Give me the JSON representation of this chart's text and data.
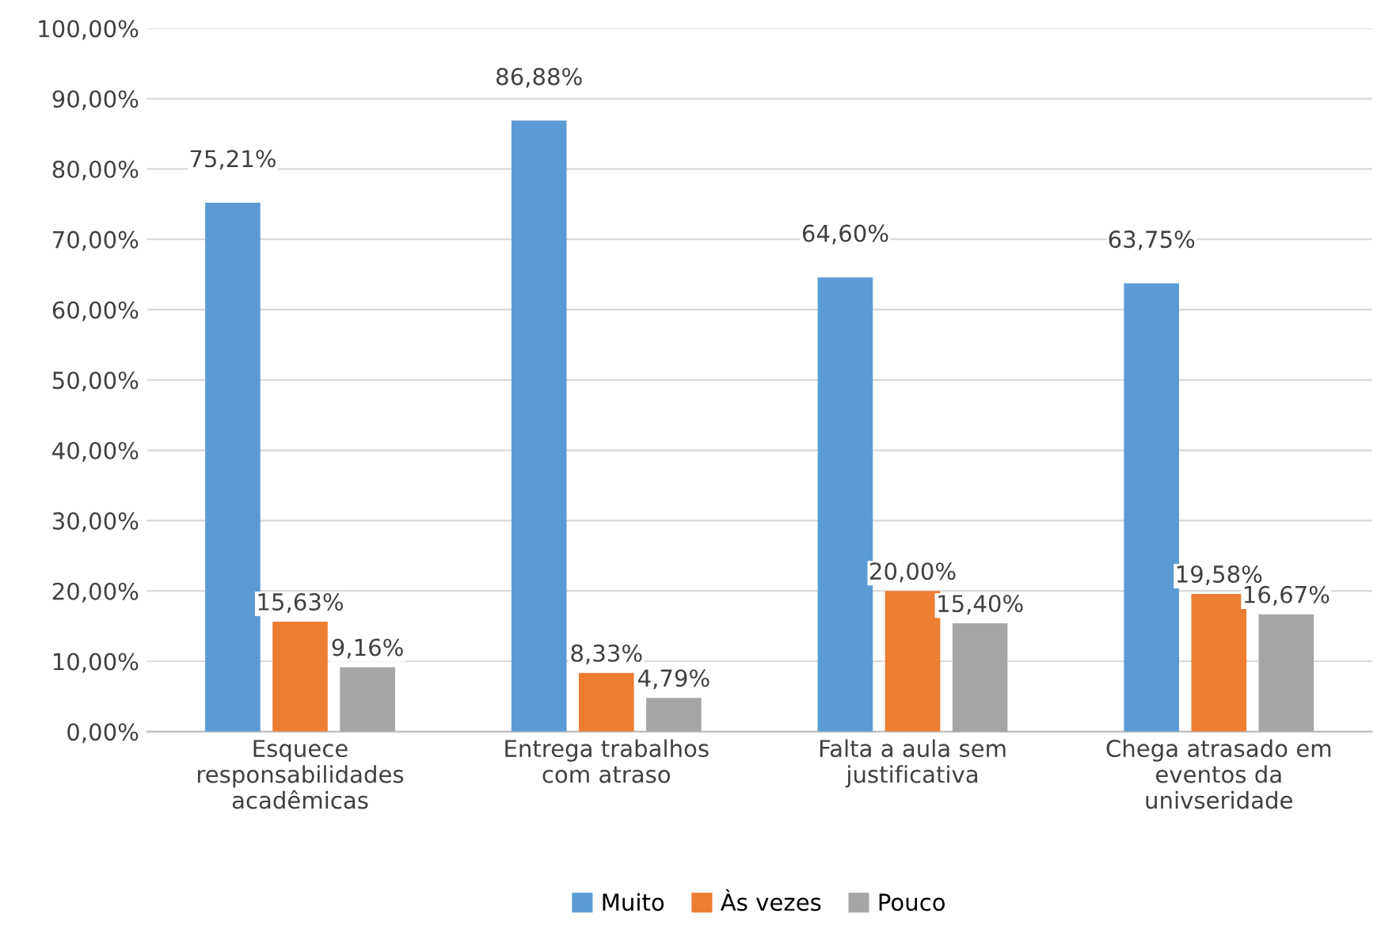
{
  "chart_data": {
    "type": "bar",
    "categories": [
      "Esquece\nresponsabilidades\nacadêmicas",
      "Entrega trabalhos\ncom atraso",
      "Falta a aula sem\njustificativa",
      "Chega atrasado em\neventos da\nunivseridade"
    ],
    "series": [
      {
        "name": "Muito",
        "color": "#5b9bd5",
        "values": [
          75.21,
          86.88,
          64.6,
          63.75
        ],
        "value_labels": [
          "75,21%",
          "86,88%",
          "64,60%",
          "63,75%"
        ]
      },
      {
        "name": "Às vezes",
        "color": "#ed7d31",
        "values": [
          15.63,
          8.33,
          20.0,
          19.58
        ],
        "value_labels": [
          "15,63%",
          "8,33%",
          "20,00%",
          "19,58%"
        ]
      },
      {
        "name": "Pouco",
        "color": "#a5a5a5",
        "values": [
          9.16,
          4.79,
          15.4,
          16.67
        ],
        "value_labels": [
          "9,16%",
          "4,79%",
          "15,40%",
          "16,67%"
        ]
      }
    ],
    "ylim": [
      0,
      100
    ],
    "yticks": [
      {
        "value": 0,
        "label": "0,00%"
      },
      {
        "value": 10,
        "label": "10,00%"
      },
      {
        "value": 20,
        "label": "20,00%"
      },
      {
        "value": 30,
        "label": "30,00%"
      },
      {
        "value": 40,
        "label": "40,00%"
      },
      {
        "value": 50,
        "label": "50,00%"
      },
      {
        "value": 60,
        "label": "60,00%"
      },
      {
        "value": 70,
        "label": "70,00%"
      },
      {
        "value": 80,
        "label": "80,00%"
      },
      {
        "value": 90,
        "label": "90,00%"
      },
      {
        "value": 100,
        "label": "100,00%"
      }
    ],
    "grid": "y",
    "legend": "bottom"
  }
}
